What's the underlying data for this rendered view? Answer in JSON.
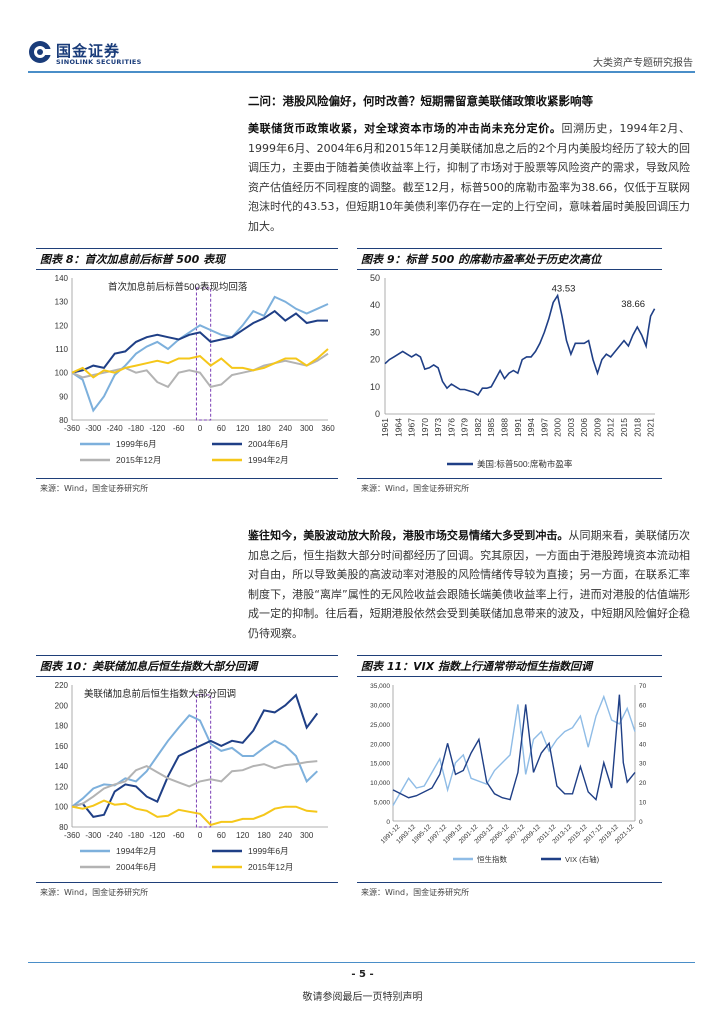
{
  "header": {
    "logo_cn": "国金证券",
    "logo_en": "SINOLINK SECURITIES",
    "report_type": "大类资产专题研究报告"
  },
  "section": {
    "title": "二问：港股风险偏好，何时改善？短期需留意美联储政策收紧影响等"
  },
  "para1": {
    "lead": "美联储货币政策收紧，对全球资本市场的冲击尚未充分定价。",
    "body": "回溯历史，1994年2月、1999年6月、2004年6月和2015年12月美联储加息之后的2个月内美股均经历了较大的回调压力，主要由于随着美债收益率上行，抑制了市场对于股票等风险资产的需求，导致风险资产估值经历不同程度的调整。截至12月，标普500的席勒市盈率为38.66，仅低于互联网泡沫时代的43.53，但短期10年美债利率仍存在一定的上行空间，意味着届时美股回调压力加大。"
  },
  "para2": {
    "lead": "鉴往知今，美股波动放大阶段，港股市场交易情绪大多受到冲击。",
    "body": "从同期来看，美联储历次加息之后，恒生指数大部分时间都经历了回调。究其原因，一方面由于港股跨境资本流动相对自由，所以导致美股的高波动率对港股的风险情绪传导较为直接；另一方面，在联系汇率制度下，港股“离岸”属性的无风险收益会跟随长端美债收益率上行，进而对港股的估值端形成一定的抑制。往后看，短期港股依然会受到美联储加息带来的波及，中短期风险偏好企稳仍待观察。"
  },
  "fig8": {
    "title": "图表 8：首次加息前后标普 500 表现",
    "annotation": "首次加息前后标普500表现均回落",
    "source": "来源：Wind，国金证券研究所"
  },
  "fig9": {
    "title": "图表 9：标普 500 的席勒市盈率处于历史次高位",
    "source": "来源：Wind，国金证券研究所"
  },
  "fig10": {
    "title": "图表 10：美联储加息后恒生指数大部分回调",
    "annotation": "美联储加息前后恒生指数大部分回调",
    "source": "来源：Wind，国金证券研究所"
  },
  "fig11": {
    "title": "图表 11：VIX 指数上行通常带动恒生指数回调",
    "source": "来源：Wind，国金证券研究所"
  },
  "chart_data": [
    {
      "id": "fig8",
      "type": "line",
      "x": [
        -360,
        -330,
        -300,
        -270,
        -240,
        -210,
        -180,
        -150,
        -120,
        -90,
        -60,
        -30,
        0,
        30,
        60,
        90,
        120,
        150,
        180,
        210,
        240,
        270,
        300,
        330,
        360
      ],
      "x_ticks": [
        "-360",
        "-300",
        "-240",
        "-180",
        "-120",
        "-60",
        "0",
        "60",
        "120",
        "180",
        "240",
        "300",
        "360"
      ],
      "ylim": [
        80,
        140
      ],
      "y_ticks": [
        80,
        90,
        100,
        110,
        120,
        130,
        140
      ],
      "series": [
        {
          "name": "1999年6月",
          "color": "#7db0dc",
          "values": [
            100,
            97,
            84,
            90,
            99,
            103,
            108,
            111,
            113,
            110,
            114,
            117,
            120,
            118,
            116,
            115,
            120,
            126,
            124,
            132,
            130,
            127,
            125,
            127,
            129
          ]
        },
        {
          "name": "2004年6月",
          "color": "#1f3f86",
          "values": [
            100,
            101,
            103,
            102,
            108,
            109,
            113,
            115,
            116,
            115,
            114,
            116,
            117,
            113,
            114,
            115,
            118,
            121,
            123,
            126,
            122,
            125,
            121,
            122,
            122
          ]
        },
        {
          "name": "2015年12月",
          "color": "#b3b3b3",
          "values": [
            100,
            98,
            99,
            100,
            101,
            102,
            100,
            101,
            96,
            94,
            100,
            101,
            100,
            94,
            95,
            99,
            100,
            101,
            103,
            104,
            105,
            104,
            103,
            105,
            108
          ]
        },
        {
          "name": "1994年2月",
          "color": "#f5c71a",
          "values": [
            100,
            102,
            98,
            101,
            100,
            102,
            103,
            104,
            105,
            104,
            106,
            106,
            107,
            103,
            106,
            102,
            102,
            101,
            102,
            104,
            106,
            106,
            103,
            106,
            110
          ]
        }
      ]
    },
    {
      "id": "fig9",
      "type": "line",
      "ylim": [
        0,
        50
      ],
      "y_ticks": [
        0,
        10,
        20,
        30,
        40,
        50
      ],
      "x_ticks": [
        "1961",
        "1964",
        "1967",
        "1970",
        "1973",
        "1976",
        "1979",
        "1982",
        "1985",
        "1988",
        "1991",
        "1994",
        "1997",
        "2000",
        "2003",
        "2006",
        "2009",
        "2012",
        "2015",
        "2018",
        "2021"
      ],
      "x_range": [
        1961,
        2022
      ],
      "series": [
        {
          "name": "美国:标普500:席勒市盈率",
          "color": "#1f3f86",
          "points": [
            [
              1961,
              18.5
            ],
            [
              1962,
              20
            ],
            [
              1963,
              21
            ],
            [
              1964,
              22
            ],
            [
              1965,
              23
            ],
            [
              1966,
              22
            ],
            [
              1967,
              21
            ],
            [
              1968,
              22
            ],
            [
              1969,
              21
            ],
            [
              1970,
              16.5
            ],
            [
              1971,
              17
            ],
            [
              1972,
              18
            ],
            [
              1973,
              17
            ],
            [
              1974,
              12
            ],
            [
              1975,
              9.5
            ],
            [
              1976,
              11
            ],
            [
              1977,
              10
            ],
            [
              1978,
              9
            ],
            [
              1979,
              9
            ],
            [
              1980,
              8.5
            ],
            [
              1981,
              8
            ],
            [
              1982,
              7
            ],
            [
              1983,
              9.5
            ],
            [
              1984,
              9.5
            ],
            [
              1985,
              10
            ],
            [
              1986,
              13
            ],
            [
              1987,
              16
            ],
            [
              1988,
              13
            ],
            [
              1989,
              15
            ],
            [
              1990,
              16
            ],
            [
              1991,
              15
            ],
            [
              1992,
              20
            ],
            [
              1993,
              21
            ],
            [
              1994,
              21
            ],
            [
              1995,
              23
            ],
            [
              1996,
              26
            ],
            [
              1997,
              30
            ],
            [
              1998,
              35
            ],
            [
              1999,
              41
            ],
            [
              2000,
              43.53
            ],
            [
              2001,
              36
            ],
            [
              2002,
              27
            ],
            [
              2003,
              22
            ],
            [
              2004,
              26
            ],
            [
              2005,
              26
            ],
            [
              2006,
              26
            ],
            [
              2007,
              27
            ],
            [
              2008,
              20
            ],
            [
              2009,
              15
            ],
            [
              2010,
              20
            ],
            [
              2011,
              22
            ],
            [
              2012,
              21
            ],
            [
              2013,
              23
            ],
            [
              2014,
              25
            ],
            [
              2015,
              27
            ],
            [
              2016,
              25
            ],
            [
              2017,
              29
            ],
            [
              2018,
              32
            ],
            [
              2019,
              29
            ],
            [
              2020,
              25
            ],
            [
              2020.5,
              31
            ],
            [
              2021,
              36
            ],
            [
              2021.9,
              38.66
            ]
          ]
        }
      ],
      "annotations": [
        "43.53",
        "38.66"
      ]
    },
    {
      "id": "fig10",
      "type": "line",
      "x": [
        -360,
        -330,
        -300,
        -270,
        -240,
        -210,
        -180,
        -150,
        -120,
        -90,
        -60,
        -30,
        0,
        30,
        60,
        90,
        120,
        150,
        180,
        210,
        240,
        270,
        300,
        330
      ],
      "x_ticks": [
        "-360",
        "-300",
        "-240",
        "-180",
        "-120",
        "-60",
        "0",
        "60",
        "120",
        "180",
        "240",
        "300"
      ],
      "ylim": [
        80,
        220
      ],
      "y_ticks": [
        80,
        100,
        120,
        140,
        160,
        180,
        200,
        220
      ],
      "series": [
        {
          "name": "1994年2月",
          "color": "#7db0dc",
          "values": [
            100,
            108,
            118,
            122,
            121,
            128,
            125,
            135,
            150,
            165,
            178,
            190,
            185,
            162,
            155,
            158,
            150,
            150,
            158,
            165,
            160,
            150,
            125,
            135
          ]
        },
        {
          "name": "1999年6月",
          "color": "#1f3f86",
          "values": [
            100,
            103,
            90,
            92,
            115,
            122,
            120,
            110,
            105,
            130,
            150,
            155,
            160,
            165,
            160,
            165,
            163,
            175,
            195,
            193,
            200,
            210,
            178,
            192
          ]
        },
        {
          "name": "2004年6月",
          "color": "#b3b3b3",
          "values": [
            100,
            103,
            110,
            118,
            122,
            125,
            136,
            140,
            134,
            128,
            124,
            120,
            125,
            127,
            125,
            135,
            136,
            140,
            142,
            138,
            141,
            142,
            144,
            145
          ]
        },
        {
          "name": "2015年12月",
          "color": "#f5c71a",
          "values": [
            100,
            98,
            101,
            106,
            102,
            103,
            98,
            96,
            90,
            91,
            97,
            95,
            93,
            82,
            85,
            85,
            88,
            88,
            92,
            98,
            100,
            100,
            96,
            95
          ]
        }
      ]
    },
    {
      "id": "fig11",
      "type": "line",
      "y_left_lim": [
        0,
        35000
      ],
      "y_left_ticks": [
        "0",
        "5,000",
        "10,000",
        "15,000",
        "20,000",
        "25,000",
        "30,000",
        "35,000"
      ],
      "y_right_lim": [
        0,
        70
      ],
      "y_right_ticks": [
        "0",
        "10",
        "20",
        "30",
        "40",
        "50",
        "60",
        "70"
      ],
      "x_ticks": [
        "1991-12",
        "1993-12",
        "1995-12",
        "1997-12",
        "1999-12",
        "2001-12",
        "2003-12",
        "2005-12",
        "2007-12",
        "2009-12",
        "2011-12",
        "2013-12",
        "2015-12",
        "2017-12",
        "2019-12",
        "2021-12"
      ],
      "x_range": [
        1991,
        2022
      ],
      "series": [
        {
          "name": "恒生指数",
          "axis": "left",
          "color": "#8fbce6",
          "points": [
            [
              1991,
              4000
            ],
            [
              1993,
              11000
            ],
            [
              1994,
              8500
            ],
            [
              1995,
              9000
            ],
            [
              1997,
              16000
            ],
            [
              1998,
              8000
            ],
            [
              1999,
              15000
            ],
            [
              2000,
              17000
            ],
            [
              2001,
              11000
            ],
            [
              2003,
              9500
            ],
            [
              2004,
              13000
            ],
            [
              2006,
              17000
            ],
            [
              2007,
              30000
            ],
            [
              2008,
              12000
            ],
            [
              2009,
              21000
            ],
            [
              2010,
              23000
            ],
            [
              2011,
              18000
            ],
            [
              2012,
              21000
            ],
            [
              2013,
              23000
            ],
            [
              2014,
              24000
            ],
            [
              2015,
              27000
            ],
            [
              2016,
              19000
            ],
            [
              2017,
              27000
            ],
            [
              2018,
              32000
            ],
            [
              2019,
              26000
            ],
            [
              2020,
              25000
            ],
            [
              2021,
              29000
            ],
            [
              2022,
              23000
            ]
          ]
        },
        {
          "name": "VIX (右轴)",
          "axis": "right",
          "color": "#1f3f86",
          "points": [
            [
              1991,
              16
            ],
            [
              1993,
              12
            ],
            [
              1994,
              13
            ],
            [
              1996,
              17
            ],
            [
              1997,
              24
            ],
            [
              1998,
              40
            ],
            [
              1999,
              24
            ],
            [
              2000,
              26
            ],
            [
              2001,
              35
            ],
            [
              2002,
              42
            ],
            [
              2003,
              20
            ],
            [
              2004,
              14
            ],
            [
              2005,
              12
            ],
            [
              2006,
              11
            ],
            [
              2007,
              25
            ],
            [
              2008,
              60
            ],
            [
              2009,
              25
            ],
            [
              2010,
              35
            ],
            [
              2011,
              40
            ],
            [
              2012,
              18
            ],
            [
              2013,
              14
            ],
            [
              2014,
              14
            ],
            [
              2015,
              28
            ],
            [
              2016,
              15
            ],
            [
              2017,
              11
            ],
            [
              2018,
              30
            ],
            [
              2019,
              17
            ],
            [
              2020,
              65
            ],
            [
              2020.5,
              30
            ],
            [
              2021,
              20
            ],
            [
              2022,
              25
            ]
          ]
        }
      ]
    }
  ],
  "footer": {
    "page_num": "- 5 -",
    "disclaimer": "敬请参阅最后一页特别声明"
  }
}
